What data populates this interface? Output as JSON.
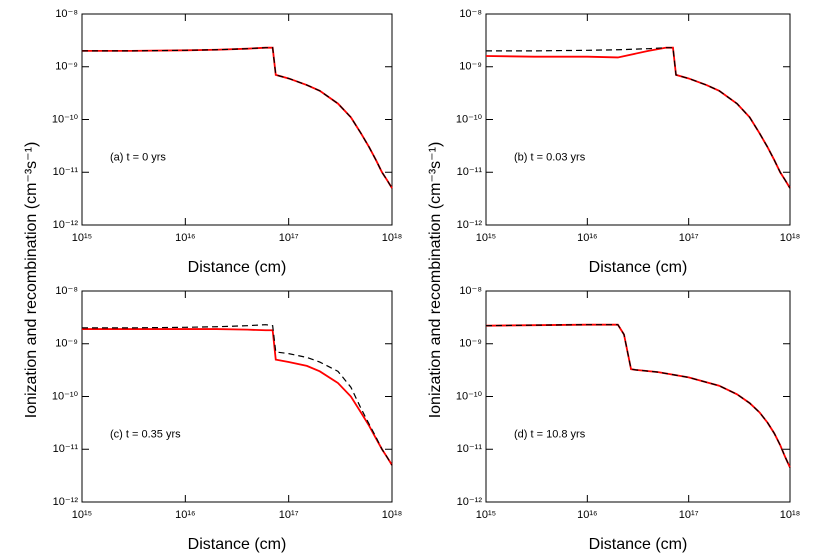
{
  "chart_data": [
    {
      "type": "line",
      "annotation": "(a) t = 0 yrs",
      "xlabel": "Distance (cm)",
      "ylabel": "Ionization and recombination (cm⁻³s⁻¹)",
      "log_x": true,
      "log_y": true,
      "xlim": [
        1000000000000000.0,
        1e+18
      ],
      "ylim": [
        1e-12,
        1e-08
      ],
      "xticks": [
        {
          "value": 1000000000000000.0,
          "label": "10¹⁵"
        },
        {
          "value": 1e+16,
          "label": "10¹⁶"
        },
        {
          "value": 1e+17,
          "label": "10¹⁷"
        },
        {
          "value": 1e+18,
          "label": "10¹⁸"
        }
      ],
      "yticks": [
        {
          "value": 1e-12,
          "label": "10⁻¹²"
        },
        {
          "value": 1e-11,
          "label": "10⁻¹¹"
        },
        {
          "value": 1e-10,
          "label": "10⁻¹⁰"
        },
        {
          "value": 1e-09,
          "label": "10⁻⁹"
        },
        {
          "value": 1e-08,
          "label": "10⁻⁸"
        }
      ],
      "x": [
        1000000000000000.0,
        3000000000000000.0,
        1e+16,
        2e+16,
        4e+16,
        6e+16,
        7e+16,
        7.5e+16,
        1e+17,
        1.5e+17,
        2e+17,
        3e+17,
        4e+17,
        5e+17,
        6e+17,
        7e+17,
        8e+17,
        9e+17,
        1e+18
      ],
      "series": [
        {
          "color": "#ff0000",
          "style": "solid",
          "values": [
            2e-09,
            2e-09,
            2.05e-09,
            2.1e-09,
            2.2e-09,
            2.3e-09,
            2.3e-09,
            7e-10,
            6e-10,
            4.5e-10,
            3.5e-10,
            2e-10,
            1.1e-10,
            5.5e-11,
            3e-11,
            1.7e-11,
            1e-11,
            7e-12,
            5e-12
          ]
        },
        {
          "color": "#000000",
          "style": "dashed",
          "values": [
            2e-09,
            2e-09,
            2.05e-09,
            2.1e-09,
            2.2e-09,
            2.3e-09,
            2.3e-09,
            7e-10,
            6e-10,
            4.5e-10,
            3.5e-10,
            2e-10,
            1.1e-10,
            5.5e-11,
            3e-11,
            1.7e-11,
            1e-11,
            7e-12,
            5e-12
          ]
        }
      ]
    },
    {
      "type": "line",
      "annotation": "(b) t = 0.03 yrs",
      "xlabel": "Distance (cm)",
      "ylabel": "Ionization and recombination (cm⁻³s⁻¹)",
      "log_x": true,
      "log_y": true,
      "xlim": [
        1000000000000000.0,
        1e+18
      ],
      "ylim": [
        1e-12,
        1e-08
      ],
      "xticks": [
        {
          "value": 1000000000000000.0,
          "label": "10¹⁵"
        },
        {
          "value": 1e+16,
          "label": "10¹⁶"
        },
        {
          "value": 1e+17,
          "label": "10¹⁷"
        },
        {
          "value": 1e+18,
          "label": "10¹⁸"
        }
      ],
      "yticks": [
        {
          "value": 1e-12,
          "label": "10⁻¹²"
        },
        {
          "value": 1e-11,
          "label": "10⁻¹¹"
        },
        {
          "value": 1e-10,
          "label": "10⁻¹⁰"
        },
        {
          "value": 1e-09,
          "label": "10⁻⁹"
        },
        {
          "value": 1e-08,
          "label": "10⁻⁸"
        }
      ],
      "x": [
        1000000000000000.0,
        3000000000000000.0,
        1e+16,
        2e+16,
        4e+16,
        6e+16,
        7e+16,
        7.5e+16,
        1e+17,
        1.5e+17,
        2e+17,
        3e+17,
        4e+17,
        5e+17,
        6e+17,
        7e+17,
        8e+17,
        9e+17,
        1e+18
      ],
      "series": [
        {
          "color": "#ff0000",
          "style": "solid",
          "values": [
            1.6e-09,
            1.55e-09,
            1.55e-09,
            1.5e-09,
            2e-09,
            2.3e-09,
            2.3e-09,
            7e-10,
            6e-10,
            4.5e-10,
            3.5e-10,
            2e-10,
            1.1e-10,
            5.5e-11,
            3e-11,
            1.7e-11,
            1e-11,
            7e-12,
            5e-12
          ]
        },
        {
          "color": "#000000",
          "style": "dashed",
          "values": [
            2e-09,
            2e-09,
            2.05e-09,
            2.1e-09,
            2.2e-09,
            2.3e-09,
            2.3e-09,
            7e-10,
            6e-10,
            4.5e-10,
            3.5e-10,
            2e-10,
            1.1e-10,
            5.5e-11,
            3e-11,
            1.7e-11,
            1e-11,
            7e-12,
            5e-12
          ]
        }
      ]
    },
    {
      "type": "line",
      "annotation": "(c) t = 0.35 yrs",
      "xlabel": "Distance (cm)",
      "log_x": true,
      "log_y": true,
      "xlim": [
        1000000000000000.0,
        1e+18
      ],
      "ylim": [
        1e-12,
        1e-08
      ],
      "xticks": [
        {
          "value": 1000000000000000.0,
          "label": "10¹⁵"
        },
        {
          "value": 1e+16,
          "label": "10¹⁶"
        },
        {
          "value": 1e+17,
          "label": "10¹⁷"
        },
        {
          "value": 1e+18,
          "label": "10¹⁸"
        }
      ],
      "yticks": [
        {
          "value": 1e-12,
          "label": "10⁻¹²"
        },
        {
          "value": 1e-11,
          "label": "10⁻¹¹"
        },
        {
          "value": 1e-10,
          "label": "10⁻¹⁰"
        },
        {
          "value": 1e-09,
          "label": "10⁻⁹"
        },
        {
          "value": 1e-08,
          "label": "10⁻⁸"
        }
      ],
      "x": [
        1000000000000000.0,
        3000000000000000.0,
        1e+16,
        2e+16,
        4e+16,
        6e+16,
        7e+16,
        7.5e+16,
        1e+17,
        1.5e+17,
        2e+17,
        3e+17,
        4e+17,
        5e+17,
        6e+17,
        7e+17,
        8e+17,
        9e+17,
        1e+18
      ],
      "series": [
        {
          "color": "#ff0000",
          "style": "solid",
          "values": [
            1.9e-09,
            1.9e-09,
            1.9e-09,
            1.9e-09,
            1.85e-09,
            1.8e-09,
            1.8e-09,
            5e-10,
            4.5e-10,
            3.8e-10,
            3e-10,
            1.8e-10,
            1e-10,
            5e-11,
            2.8e-11,
            1.6e-11,
            1e-11,
            7e-12,
            5e-12
          ]
        },
        {
          "color": "#000000",
          "style": "dashed",
          "values": [
            2e-09,
            2e-09,
            2.05e-09,
            2.1e-09,
            2.2e-09,
            2.3e-09,
            2.2e-09,
            7e-10,
            6.5e-10,
            5.5e-10,
            4.5e-10,
            3e-10,
            1.5e-10,
            6e-11,
            3e-11,
            1.7e-11,
            1e-11,
            7e-12,
            5e-12
          ]
        }
      ]
    },
    {
      "type": "line",
      "annotation": "(d) t = 10.8 yrs",
      "xlabel": "Distance (cm)",
      "log_x": true,
      "log_y": true,
      "xlim": [
        1000000000000000.0,
        1e+18
      ],
      "ylim": [
        1e-12,
        1e-08
      ],
      "xticks": [
        {
          "value": 1000000000000000.0,
          "label": "10¹⁵"
        },
        {
          "value": 1e+16,
          "label": "10¹⁶"
        },
        {
          "value": 1e+17,
          "label": "10¹⁷"
        },
        {
          "value": 1e+18,
          "label": "10¹⁸"
        }
      ],
      "yticks": [
        {
          "value": 1e-12,
          "label": "10⁻¹²"
        },
        {
          "value": 1e-11,
          "label": "10⁻¹¹"
        },
        {
          "value": 1e-10,
          "label": "10⁻¹⁰"
        },
        {
          "value": 1e-09,
          "label": "10⁻⁹"
        },
        {
          "value": 1e-08,
          "label": "10⁻⁸"
        }
      ],
      "x": [
        1000000000000000.0,
        3000000000000000.0,
        1e+16,
        2e+16,
        2.3e+16,
        2.7e+16,
        3e+16,
        5e+16,
        1e+17,
        2e+17,
        3e+17,
        4e+17,
        5e+17,
        6e+17,
        7e+17,
        8e+17,
        9e+17,
        1e+18
      ],
      "series": [
        {
          "color": "#ff0000",
          "style": "solid",
          "values": [
            2.2e-09,
            2.25e-09,
            2.3e-09,
            2.3e-09,
            1.5e-09,
            3.3e-10,
            3.2e-10,
            2.9e-10,
            2.3e-10,
            1.6e-10,
            1.1e-10,
            7.5e-11,
            5e-11,
            3.2e-11,
            2e-11,
            1.2e-11,
            7e-12,
            4.5e-12
          ]
        },
        {
          "color": "#000000",
          "style": "dashed",
          "values": [
            2.2e-09,
            2.25e-09,
            2.3e-09,
            2.3e-09,
            1.5e-09,
            3.3e-10,
            3.2e-10,
            2.9e-10,
            2.3e-10,
            1.6e-10,
            1.1e-10,
            7.5e-11,
            5e-11,
            3.2e-11,
            2e-11,
            1.2e-11,
            7e-12,
            4.5e-12
          ]
        }
      ]
    }
  ]
}
